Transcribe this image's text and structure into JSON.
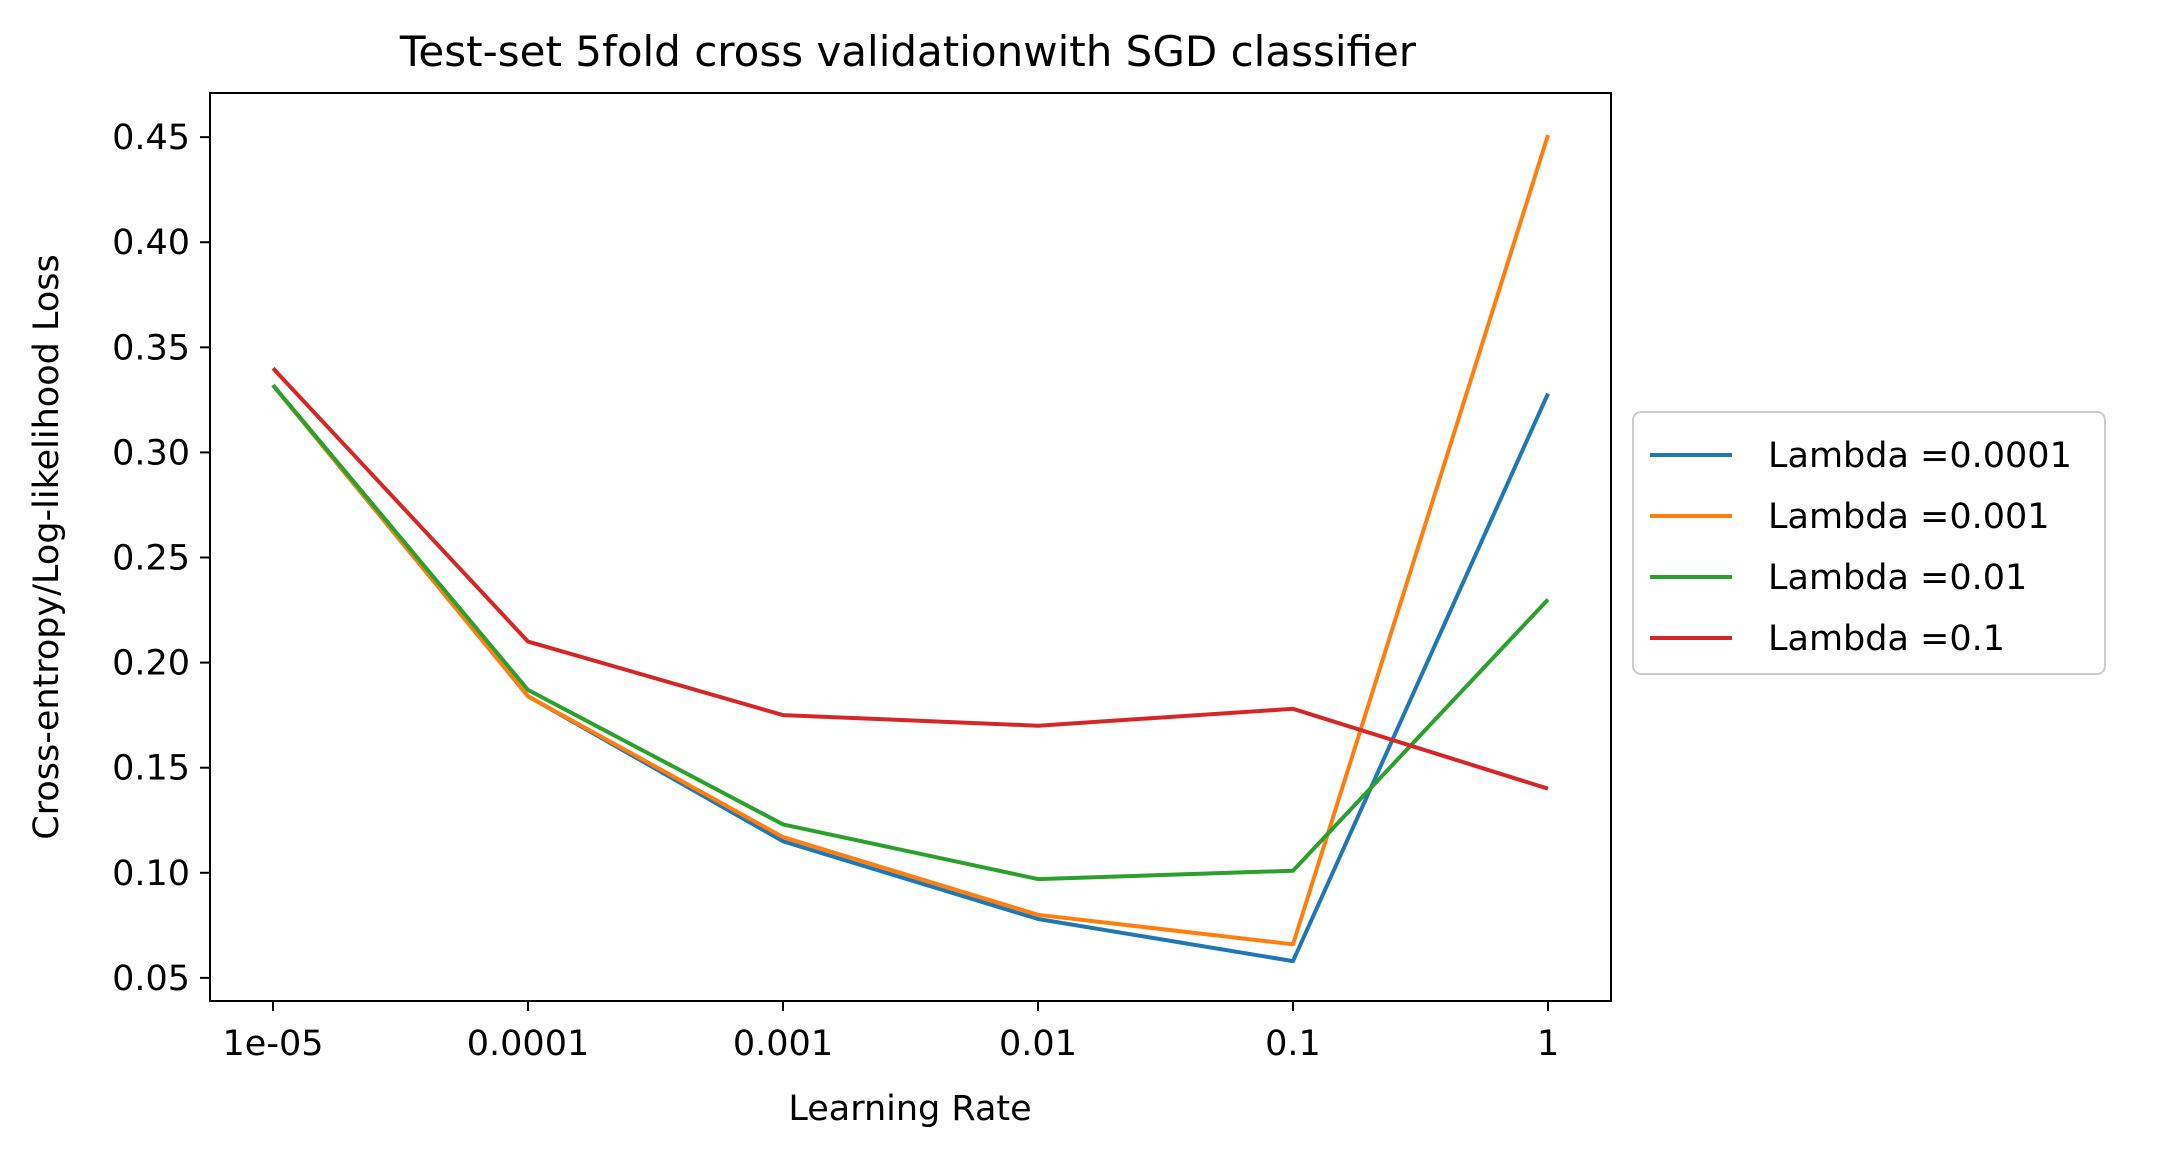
{
  "chart_data": {
    "type": "line",
    "title": "Test-set 5fold cross validationwith SGD classifier",
    "xlabel": "Learning Rate",
    "ylabel": "Cross-entropy/Log-likelihood Loss",
    "categories": [
      "1e-05",
      "0.0001",
      "0.001",
      "0.01",
      "0.1",
      "1"
    ],
    "y_ticks": [
      0.05,
      0.1,
      0.15,
      0.2,
      0.25,
      0.3,
      0.35,
      0.4,
      0.45
    ],
    "y_tick_labels": [
      "0.05",
      "0.10",
      "0.15",
      "0.20",
      "0.25",
      "0.30",
      "0.35",
      "0.40",
      "0.45"
    ],
    "ylim": [
      0.039,
      0.471
    ],
    "grid": false,
    "legend_position": "right outside",
    "series": [
      {
        "name": "Lambda =0.0001",
        "color": "#1f77b4",
        "values": [
          0.332,
          0.184,
          0.115,
          0.078,
          0.058,
          0.328
        ]
      },
      {
        "name": "Lambda =0.001",
        "color": "#ff7f0e",
        "values": [
          0.332,
          0.184,
          0.117,
          0.08,
          0.066,
          0.451
        ]
      },
      {
        "name": "Lambda =0.01",
        "color": "#2ca02c",
        "values": [
          0.332,
          0.187,
          0.123,
          0.097,
          0.101,
          0.23
        ]
      },
      {
        "name": "Lambda =0.1",
        "color": "#d62728",
        "values": [
          0.34,
          0.21,
          0.175,
          0.17,
          0.178,
          0.14
        ]
      }
    ]
  }
}
